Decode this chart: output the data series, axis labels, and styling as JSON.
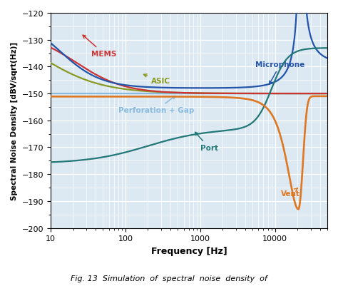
{
  "xlabel": "Frequency [Hz]",
  "ylabel": "Spectral Noise Density [dBV/sqrt(Hz)]",
  "xlim": [
    10,
    50000
  ],
  "ylim": [
    -200,
    -120
  ],
  "yticks": [
    -200,
    -190,
    -180,
    -170,
    -160,
    -150,
    -140,
    -130,
    -120
  ],
  "background_color": "#dce8f2",
  "grid_color": "#ffffff",
  "mic_color": "#2255aa",
  "mems_color": "#cc3333",
  "asic_color": "#889922",
  "perf_color": "#88bbdd",
  "port_color": "#227777",
  "vent_color": "#dd7722",
  "caption": "Fig. 13  Simulation  of  spectral  noise  density  of"
}
